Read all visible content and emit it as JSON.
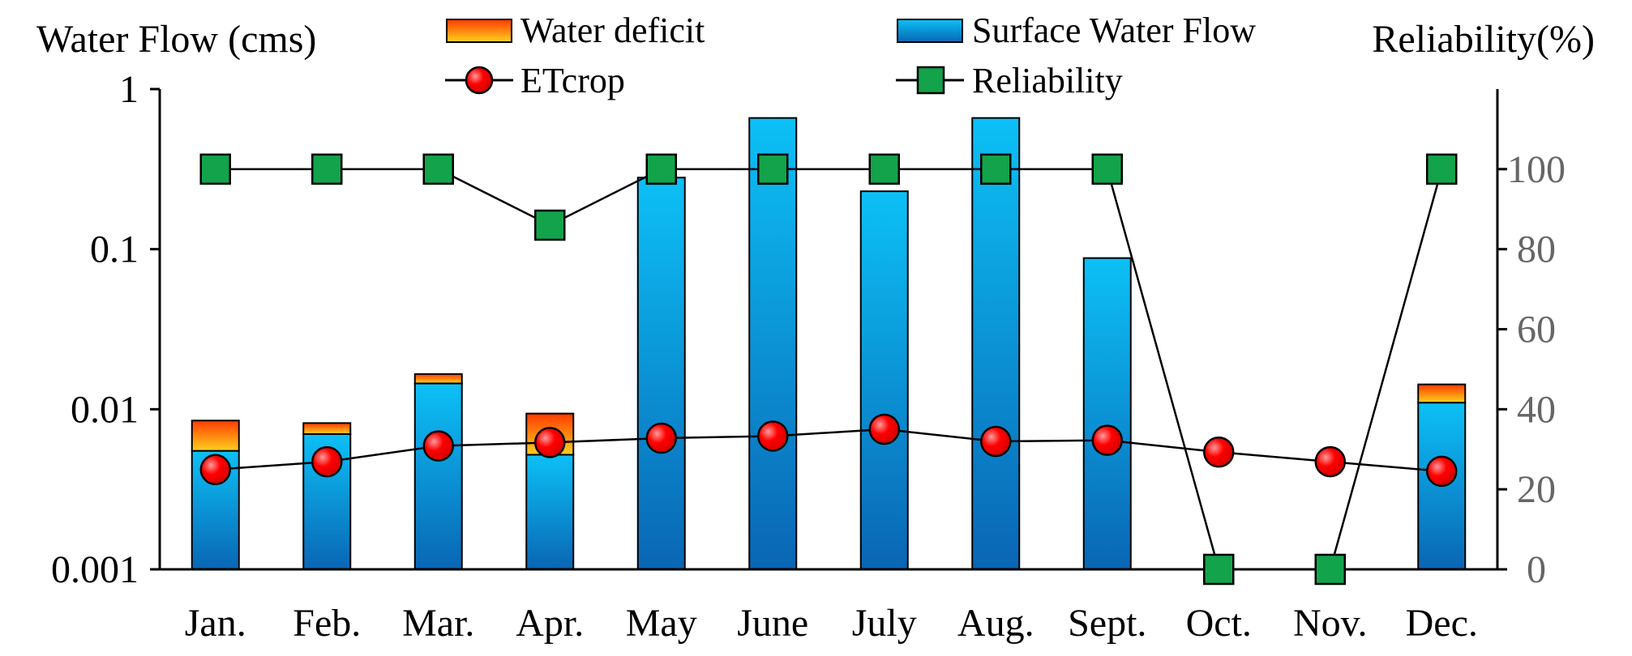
{
  "chart_data": {
    "type": "bar",
    "categories": [
      "Jan.",
      "Feb.",
      "Mar.",
      "Apr.",
      "May",
      "June",
      "July",
      "Aug.",
      "Sept.",
      "Oct.",
      "Nov.",
      "Dec."
    ],
    "ylabel_left": "Water Flow (cms)",
    "ylabel_right": "Reliability(%)",
    "left_axis": {
      "scale": "log",
      "range": [
        0.001,
        1
      ],
      "ticks": [
        1,
        0.1,
        0.01,
        0.001
      ],
      "tick_labels": [
        "1",
        "0.1",
        "0.01",
        "0.001"
      ]
    },
    "right_axis": {
      "scale": "linear",
      "range": [
        0,
        120
      ],
      "ticks": [
        0,
        20,
        40,
        60,
        80,
        100
      ],
      "tick_labels": [
        "0",
        "20",
        "40",
        "60",
        "80",
        "100"
      ]
    },
    "legend_position": "top",
    "series": [
      {
        "name": "Water deficit",
        "type": "stacked-bar",
        "axis": "left",
        "values": [
          0.003,
          0.0012,
          0.0021,
          0.0042,
          0,
          0,
          0,
          0,
          0,
          0,
          0,
          0.0033
        ]
      },
      {
        "name": "Surface Water Flow",
        "type": "bar",
        "axis": "left",
        "values": [
          0.0055,
          0.007,
          0.0145,
          0.0052,
          0.28,
          0.66,
          0.23,
          0.66,
          0.088,
          0,
          0,
          0.011
        ]
      },
      {
        "name": "ETcrop",
        "type": "line",
        "axis": "left",
        "values": [
          0.0042,
          0.0047,
          0.0059,
          0.0062,
          0.0066,
          0.0068,
          0.0075,
          0.0063,
          0.0064,
          0.0054,
          0.0047,
          0.0041
        ]
      },
      {
        "name": "Reliability",
        "type": "line",
        "axis": "right",
        "values": [
          100,
          100,
          100,
          86,
          100,
          100,
          100,
          100,
          100,
          0,
          0,
          100
        ]
      }
    ],
    "colors": {
      "bar_light": "#0cc0f6",
      "bar_dark": "#0a66b4",
      "deficit_top": "#ff3a00",
      "deficit_bottom": "#ffd21e",
      "etcrop_fill": "#ff0000",
      "etcrop_highlight": "#ff9a9a",
      "reliability_fill": "#13a34a",
      "axis": "#000000",
      "right_tick_text": "#666666"
    }
  }
}
